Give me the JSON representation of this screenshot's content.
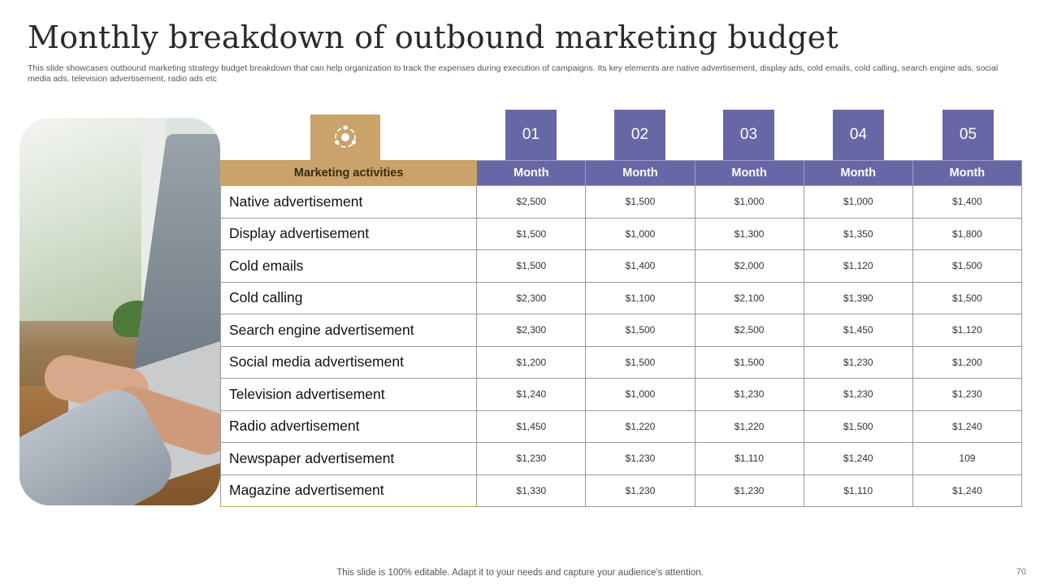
{
  "title": "Monthly breakdown of outbound marketing budget",
  "subtitle": "This slide showcases outbound marketing strategy budget breakdown that can help organization to track the expenses during execution of campaigns. Its key elements are native advertisement, display ads, cold emails, cold calling, search engine ads, social media ads, television advertisement, radio ads etc",
  "icon": "marketing-cycle-icon",
  "colors": {
    "accent_gold": "#c9a36b",
    "accent_purple": "#6867a6"
  },
  "month_numbers": [
    "01",
    "02",
    "03",
    "04",
    "05"
  ],
  "table": {
    "header_activity": "Marketing activities",
    "header_months": [
      "Month",
      "Month",
      "Month",
      "Month",
      "Month"
    ],
    "rows": [
      {
        "name": "Native advertisement",
        "values": [
          "$2,500",
          "$1,500",
          "$1,000",
          "$1,000",
          "$1,400"
        ]
      },
      {
        "name": "Display advertisement",
        "values": [
          "$1,500",
          "$1,000",
          "$1,300",
          "$1,350",
          "$1,800"
        ]
      },
      {
        "name": "Cold emails",
        "values": [
          "$1,500",
          "$1,400",
          "$2,000",
          "$1,120",
          "$1,500"
        ]
      },
      {
        "name": "Cold calling",
        "values": [
          "$2,300",
          "$1,100",
          "$2,100",
          "$1,390",
          "$1,500"
        ]
      },
      {
        "name": "Search engine advertisement",
        "values": [
          "$2,300",
          "$1,500",
          "$2,500",
          "$1,450",
          "$1,120"
        ]
      },
      {
        "name": "Social media advertisement",
        "values": [
          "$1,200",
          "$1,500",
          "$1,500",
          "$1,230",
          "$1,200"
        ]
      },
      {
        "name": "Television advertisement",
        "values": [
          "$1,240",
          "$1,000",
          "$1,230",
          "$1,230",
          "$1,230"
        ]
      },
      {
        "name": "Radio advertisement",
        "values": [
          "$1,450",
          "$1,220",
          "$1,220",
          "$1,500",
          "$1,240"
        ]
      },
      {
        "name": "Newspaper advertisement",
        "values": [
          "$1,230",
          "$1,230",
          "$1,110",
          "$1,240",
          "109"
        ]
      },
      {
        "name": "Magazine advertisement",
        "values": [
          "$1,330",
          "$1,230",
          "$1,230",
          "$1,110",
          "$1,240"
        ]
      }
    ]
  },
  "footer": "This slide is 100% editable. Adapt it to your needs and capture your audience's attention.",
  "page_number": "70"
}
